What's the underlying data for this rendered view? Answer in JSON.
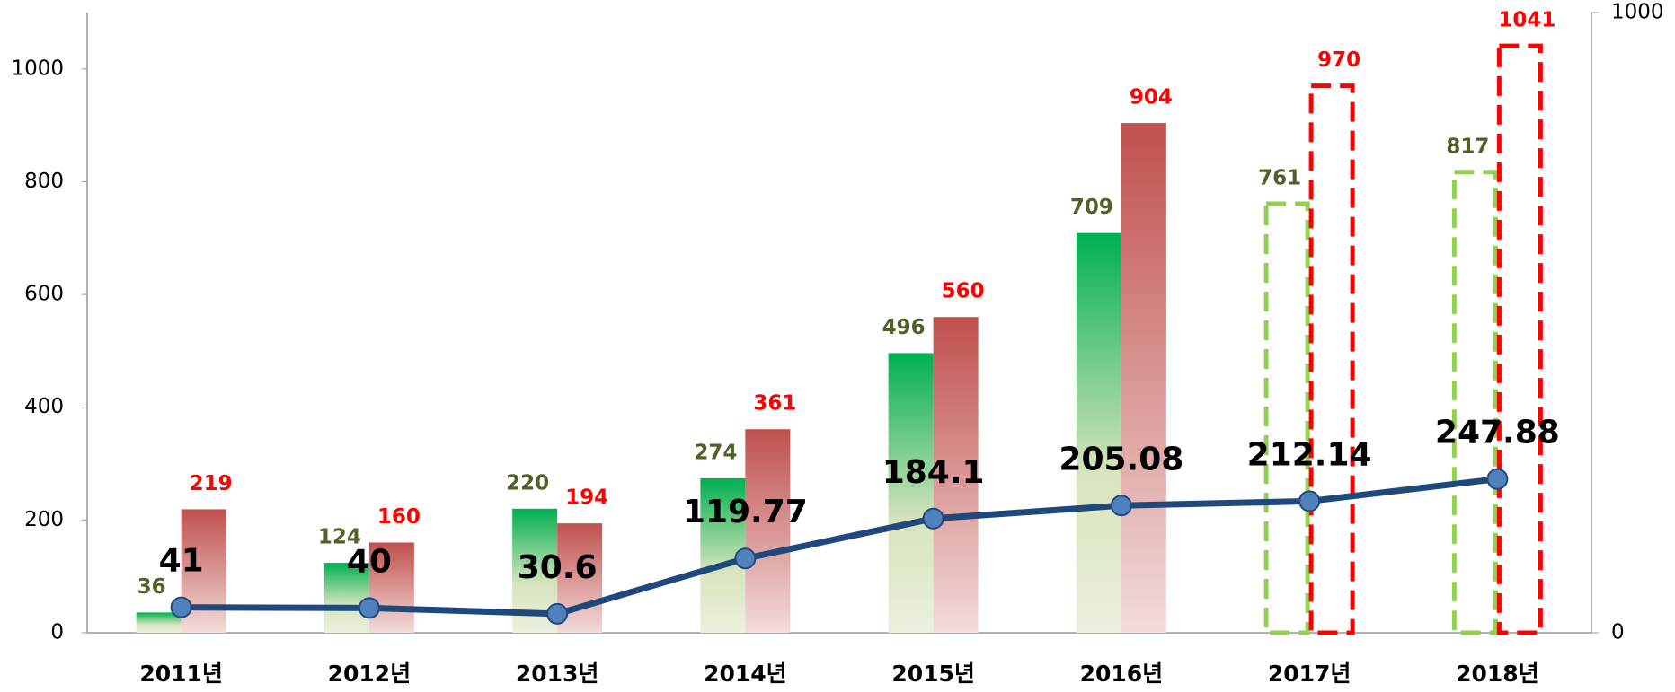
{
  "chart_data": {
    "type": "bar_line",
    "categories": [
      "2011년",
      "2012년",
      "2013년",
      "2014년",
      "2015년",
      "2016년",
      "2017년",
      "2018년"
    ],
    "dashed": [
      false,
      false,
      false,
      false,
      false,
      false,
      true,
      true
    ],
    "series": [
      {
        "type": "bar",
        "color": "#00b050",
        "label_color": "#4f6228",
        "dash_color": "#92d050",
        "values": [
          36,
          124,
          220,
          274,
          496,
          709,
          761,
          817
        ]
      },
      {
        "type": "bar",
        "color": "#c0504d",
        "label_color": "#ff0000",
        "dash_color": "#ff0000",
        "values": [
          219,
          160,
          194,
          361,
          560,
          904,
          970,
          1041
        ]
      },
      {
        "type": "line",
        "axis": "y2",
        "color": "#1f497d",
        "marker_color": "#4f81bd",
        "values": [
          41,
          40,
          30.6,
          119.77,
          184.1,
          205.08,
          212.14,
          247.88
        ]
      }
    ],
    "ylim": [
      0,
      1100
    ],
    "yticks": [
      0,
      200,
      400,
      600,
      800,
      1000
    ],
    "y2lim": [
      0,
      1000
    ],
    "y2ticks": [
      0,
      1000
    ]
  }
}
